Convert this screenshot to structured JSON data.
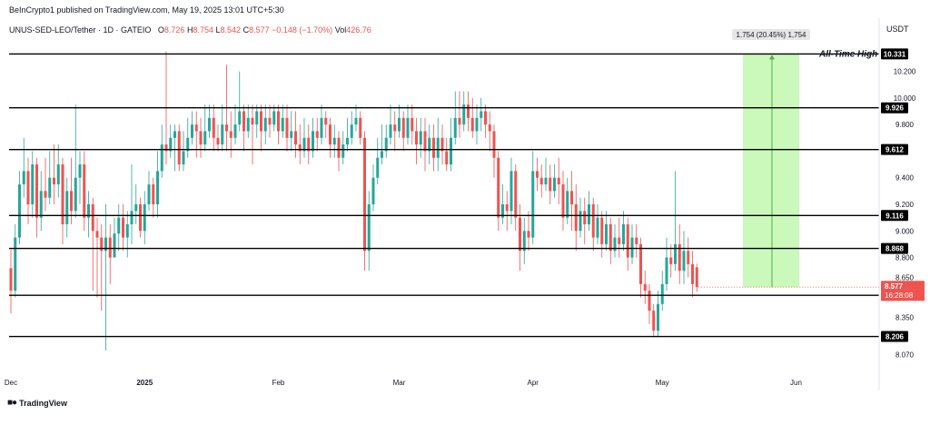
{
  "header": {
    "publisher_line": "BeInCrypto1 published on TradingView.com, May 19, 2025 13:01 UTC+5:30"
  },
  "symbol": {
    "name": "UNUS-SED-LEO/Tether · 1D · GATEIO",
    "open_label": "O",
    "open": "8.726",
    "high_label": "H",
    "high": "8.754",
    "low_label": "L",
    "low": "8.542",
    "close_label": "C",
    "close": "8.577",
    "change": "−0.148 (−1.70%)",
    "vol_label": "Vol",
    "vol": "426.76"
  },
  "currency": "USDT",
  "logo_text": "TradingView",
  "colors": {
    "up": "#26a69a",
    "down": "#ef5350",
    "level_line": "#000000",
    "projection_fill": "#b9f6a4",
    "projection_line": "#4caf50",
    "current_price_badge": "#ef5350"
  },
  "chart_data": {
    "type": "candlestick",
    "ylim": [
      7.95,
      10.45
    ],
    "x_ticks": [
      {
        "label": "Dec",
        "day": 0
      },
      {
        "label": "2025",
        "day": 31
      },
      {
        "label": "Feb",
        "day": 62
      },
      {
        "label": "Mar",
        "day": 90
      },
      {
        "label": "Apr",
        "day": 121
      },
      {
        "label": "May",
        "day": 151
      },
      {
        "label": "Jun",
        "day": 182
      }
    ],
    "y_ticks": [
      "10.200",
      "10.000",
      "9.800",
      "9.400",
      "9.200",
      "9.000",
      "8.800",
      "8.650",
      "8.350",
      "8.070"
    ],
    "levels": [
      {
        "value": 10.331,
        "label": "10.331"
      },
      {
        "value": 9.926,
        "label": "9.926"
      },
      {
        "value": 9.612,
        "label": "9.612"
      },
      {
        "value": 9.116,
        "label": "9.116"
      },
      {
        "value": 8.868,
        "label": "8.868"
      },
      {
        "value": 8.516,
        "label": "8.516"
      },
      {
        "value": 8.206,
        "label": "8.206"
      }
    ],
    "ath_annotation": "All-Time High",
    "current_price": {
      "value": 8.577,
      "label": "8.577",
      "countdown": "16:28:08"
    },
    "projection": {
      "from": 8.577,
      "to": 10.331,
      "label": "1.754 (20.45%) 1,754"
    },
    "candles": [
      [
        8.72,
        8.55,
        8.86,
        8.38
      ],
      [
        8.55,
        8.95,
        9.05,
        8.5
      ],
      [
        8.95,
        9.35,
        9.45,
        8.9
      ],
      [
        9.35,
        9.45,
        9.7,
        9.25
      ],
      [
        9.45,
        9.2,
        9.55,
        9.05
      ],
      [
        9.2,
        9.5,
        9.6,
        9.1
      ],
      [
        9.5,
        9.1,
        9.55,
        8.95
      ],
      [
        9.1,
        9.3,
        9.45,
        9.0
      ],
      [
        9.3,
        9.25,
        9.55,
        9.15
      ],
      [
        9.25,
        9.4,
        9.6,
        9.2
      ],
      [
        9.4,
        9.35,
        9.65,
        9.2
      ],
      [
        9.35,
        9.5,
        9.65,
        9.25
      ],
      [
        9.5,
        9.05,
        9.55,
        8.9
      ],
      [
        9.05,
        9.3,
        9.4,
        8.95
      ],
      [
        9.3,
        9.15,
        9.55,
        9.05
      ],
      [
        9.15,
        9.4,
        9.95,
        9.1
      ],
      [
        9.4,
        9.5,
        9.6,
        9.2
      ],
      [
        9.5,
        9.1,
        9.6,
        9.0
      ],
      [
        9.1,
        9.2,
        9.3,
        8.95
      ],
      [
        9.2,
        9.0,
        9.25,
        8.55
      ],
      [
        9.0,
        8.95,
        9.1,
        8.5
      ],
      [
        8.95,
        8.85,
        9.05,
        8.4
      ],
      [
        8.85,
        8.95,
        9.2,
        8.1
      ],
      [
        8.95,
        8.8,
        9.05,
        8.6
      ],
      [
        8.8,
        8.98,
        9.1,
        8.8
      ],
      [
        8.98,
        9.1,
        9.2,
        8.85
      ],
      [
        9.1,
        8.95,
        9.2,
        8.85
      ],
      [
        8.95,
        9.05,
        9.15,
        8.8
      ],
      [
        9.05,
        9.15,
        9.5,
        8.9
      ],
      [
        9.15,
        9.2,
        9.35,
        9.05
      ],
      [
        9.2,
        9.0,
        9.25,
        8.95
      ],
      [
        9.0,
        9.2,
        9.3,
        8.9
      ],
      [
        9.2,
        9.35,
        9.45,
        9.15
      ],
      [
        9.35,
        9.2,
        9.4,
        9.1
      ],
      [
        9.2,
        9.45,
        9.6,
        9.1
      ],
      [
        9.45,
        9.65,
        9.8,
        9.4
      ],
      [
        9.65,
        9.6,
        10.35,
        9.5
      ],
      [
        9.6,
        9.7,
        9.8,
        9.55
      ],
      [
        9.7,
        9.75,
        9.8,
        9.45
      ],
      [
        9.75,
        9.5,
        9.8,
        9.45
      ],
      [
        9.5,
        9.6,
        9.75,
        9.45
      ],
      [
        9.6,
        9.7,
        9.85,
        9.55
      ],
      [
        9.7,
        9.8,
        9.9,
        9.65
      ],
      [
        9.8,
        9.75,
        9.9,
        9.55
      ],
      [
        9.75,
        9.65,
        9.85,
        9.55
      ],
      [
        9.65,
        9.75,
        9.95,
        9.6
      ],
      [
        9.75,
        9.85,
        9.95,
        9.7
      ],
      [
        9.85,
        9.7,
        9.95,
        9.6
      ],
      [
        9.7,
        9.65,
        9.8,
        9.6
      ],
      [
        9.65,
        9.8,
        9.95,
        9.6
      ],
      [
        9.8,
        9.75,
        10.25,
        9.6
      ],
      [
        9.75,
        9.7,
        9.9,
        9.55
      ],
      [
        9.7,
        9.8,
        9.95,
        9.65
      ],
      [
        9.8,
        9.9,
        10.2,
        9.75
      ],
      [
        9.9,
        9.75,
        9.95,
        9.6
      ],
      [
        9.75,
        9.85,
        9.95,
        9.7
      ],
      [
        9.85,
        9.8,
        9.95,
        9.5
      ],
      [
        9.8,
        9.9,
        9.95,
        9.7
      ],
      [
        9.9,
        9.75,
        9.95,
        9.6
      ],
      [
        9.75,
        9.85,
        9.95,
        9.65
      ],
      [
        9.85,
        9.8,
        9.95,
        9.7
      ],
      [
        9.8,
        9.9,
        9.95,
        9.75
      ],
      [
        9.9,
        9.75,
        9.95,
        9.65
      ],
      [
        9.75,
        9.85,
        9.95,
        9.7
      ],
      [
        9.85,
        9.7,
        9.95,
        9.6
      ],
      [
        9.7,
        9.75,
        9.9,
        9.6
      ],
      [
        9.75,
        9.65,
        9.9,
        9.55
      ],
      [
        9.65,
        9.6,
        9.8,
        9.5
      ],
      [
        9.6,
        9.7,
        9.85,
        9.55
      ],
      [
        9.7,
        9.6,
        9.8,
        9.5
      ],
      [
        9.6,
        9.75,
        9.85,
        9.55
      ],
      [
        9.75,
        9.7,
        9.85,
        9.6
      ],
      [
        9.7,
        9.85,
        9.95,
        9.65
      ],
      [
        9.85,
        9.8,
        9.9,
        9.7
      ],
      [
        9.8,
        9.65,
        9.85,
        9.55
      ],
      [
        9.65,
        9.7,
        9.8,
        9.55
      ],
      [
        9.7,
        9.55,
        9.75,
        9.45
      ],
      [
        9.55,
        9.65,
        9.75,
        9.5
      ],
      [
        9.65,
        9.7,
        9.85,
        9.6
      ],
      [
        9.7,
        9.8,
        9.9,
        9.65
      ],
      [
        9.8,
        9.85,
        9.95,
        9.75
      ],
      [
        9.85,
        9.7,
        9.9,
        9.65
      ],
      [
        9.7,
        8.85,
        9.75,
        8.7
      ],
      [
        8.85,
        9.2,
        9.3,
        8.7
      ],
      [
        9.2,
        9.4,
        9.5,
        9.15
      ],
      [
        9.4,
        9.55,
        9.7,
        9.35
      ],
      [
        9.55,
        9.6,
        9.8,
        9.5
      ],
      [
        9.6,
        9.7,
        9.8,
        9.55
      ],
      [
        9.7,
        9.8,
        9.95,
        9.65
      ],
      [
        9.8,
        9.75,
        9.9,
        9.6
      ],
      [
        9.75,
        9.85,
        9.95,
        9.7
      ],
      [
        9.85,
        9.7,
        9.9,
        9.6
      ],
      [
        9.7,
        9.85,
        9.95,
        9.65
      ],
      [
        9.85,
        9.75,
        9.95,
        9.65
      ],
      [
        9.75,
        9.65,
        9.85,
        9.5
      ],
      [
        9.65,
        9.75,
        9.85,
        9.55
      ],
      [
        9.75,
        9.6,
        9.85,
        9.45
      ],
      [
        9.6,
        9.7,
        9.8,
        9.5
      ],
      [
        9.7,
        9.55,
        9.8,
        9.45
      ],
      [
        9.55,
        9.7,
        9.85,
        9.45
      ],
      [
        9.7,
        9.6,
        9.8,
        9.5
      ],
      [
        9.6,
        9.5,
        9.7,
        9.45
      ],
      [
        9.5,
        9.7,
        9.85,
        9.45
      ],
      [
        9.7,
        9.85,
        10.05,
        9.65
      ],
      [
        9.85,
        9.8,
        10.05,
        9.7
      ],
      [
        9.8,
        9.95,
        10.05,
        9.75
      ],
      [
        9.95,
        9.85,
        10.05,
        9.75
      ],
      [
        9.85,
        9.75,
        10.0,
        9.7
      ],
      [
        9.75,
        9.85,
        9.95,
        9.65
      ],
      [
        9.85,
        9.9,
        10.0,
        9.75
      ],
      [
        9.9,
        9.8,
        9.95,
        9.7
      ],
      [
        9.8,
        9.75,
        9.9,
        9.6
      ],
      [
        9.75,
        9.55,
        9.8,
        9.4
      ],
      [
        9.55,
        9.1,
        9.6,
        9.0
      ],
      [
        9.1,
        9.2,
        9.35,
        9.05
      ],
      [
        9.2,
        9.15,
        9.3,
        9.0
      ],
      [
        9.15,
        9.45,
        9.55,
        9.05
      ],
      [
        9.45,
        9.1,
        9.5,
        9.0
      ],
      [
        9.1,
        8.85,
        9.2,
        8.7
      ],
      [
        8.85,
        9.0,
        9.1,
        8.75
      ],
      [
        9.0,
        8.95,
        9.15,
        8.85
      ],
      [
        8.95,
        9.45,
        9.6,
        8.9
      ],
      [
        9.45,
        9.4,
        9.55,
        9.3
      ],
      [
        9.4,
        9.35,
        9.5,
        9.25
      ],
      [
        9.35,
        9.4,
        9.55,
        9.3
      ],
      [
        9.4,
        9.3,
        9.5,
        9.2
      ],
      [
        9.3,
        9.4,
        9.5,
        9.25
      ],
      [
        9.4,
        9.35,
        9.55,
        9.2
      ],
      [
        9.35,
        9.1,
        9.45,
        9.0
      ],
      [
        9.1,
        9.3,
        9.4,
        9.05
      ],
      [
        9.3,
        9.2,
        9.45,
        9.0
      ],
      [
        9.2,
        9.0,
        9.35,
        8.85
      ],
      [
        9.0,
        9.15,
        9.25,
        8.95
      ],
      [
        9.15,
        9.05,
        9.25,
        8.9
      ],
      [
        9.05,
        9.2,
        9.3,
        9.0
      ],
      [
        9.2,
        8.95,
        9.25,
        8.85
      ],
      [
        8.95,
        9.1,
        9.2,
        8.9
      ],
      [
        9.1,
        8.9,
        9.15,
        8.8
      ],
      [
        8.9,
        9.05,
        9.15,
        8.85
      ],
      [
        9.05,
        8.85,
        9.1,
        8.75
      ],
      [
        8.85,
        8.95,
        9.05,
        8.8
      ],
      [
        8.95,
        8.9,
        9.1,
        8.8
      ],
      [
        8.9,
        9.05,
        9.15,
        8.85
      ],
      [
        9.05,
        8.8,
        9.1,
        8.7
      ],
      [
        8.8,
        8.95,
        9.05,
        8.75
      ],
      [
        8.95,
        8.9,
        9.05,
        8.8
      ],
      [
        8.9,
        8.6,
        8.95,
        8.5
      ],
      [
        8.6,
        8.55,
        8.7,
        8.45
      ],
      [
        8.55,
        8.4,
        8.6,
        8.3
      ],
      [
        8.4,
        8.25,
        8.45,
        8.2
      ],
      [
        8.25,
        8.45,
        8.55,
        8.2
      ],
      [
        8.45,
        8.6,
        8.7,
        8.4
      ],
      [
        8.6,
        8.8,
        8.95,
        8.55
      ],
      [
        8.8,
        8.75,
        8.9,
        8.65
      ],
      [
        8.75,
        8.9,
        9.45,
        8.7
      ],
      [
        8.9,
        8.7,
        9.05,
        8.6
      ],
      [
        8.7,
        8.85,
        9.0,
        8.6
      ],
      [
        8.85,
        8.75,
        8.95,
        8.65
      ],
      [
        8.75,
        8.6,
        8.85,
        8.5
      ],
      [
        8.726,
        8.577,
        8.754,
        8.542
      ]
    ]
  }
}
